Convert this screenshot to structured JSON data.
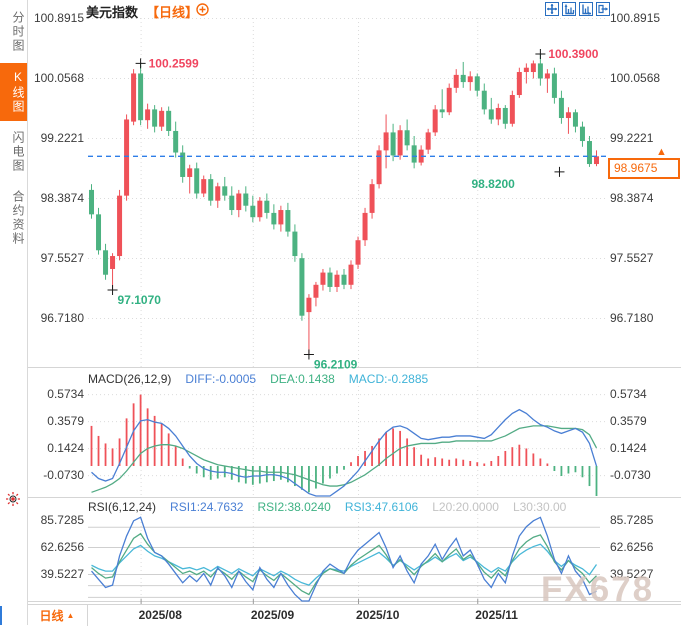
{
  "sidebar": {
    "items": [
      {
        "label": "分时图",
        "active": false
      },
      {
        "label": "K线图",
        "active": true
      },
      {
        "label": "闪电图",
        "active": false
      },
      {
        "label": "合约资料",
        "active": false
      }
    ]
  },
  "header": {
    "title": "美元指数",
    "period_tag": "【日线】"
  },
  "icons": {
    "add_indicator": "plus-circle",
    "toolbar": [
      "crosshair",
      "zoom-axis-vertical",
      "zoom-axis-horizontal",
      "exit-chart"
    ],
    "live_indicator": "blinking-red-dot",
    "price_arrow": "up-triangle"
  },
  "price_axis": {
    "labels": [
      "100.8915",
      "100.0568",
      "99.2221",
      "98.3874",
      "97.5527",
      "96.7180"
    ]
  },
  "last_price_box": {
    "value": "98.9675"
  },
  "macd_panel": {
    "title": "MACD(26,12,9)",
    "diff_label": "DIFF:-0.0005",
    "dea_label": "DEA:0.1438",
    "macd_label": "MACD:-0.2885",
    "axis_labels": [
      "0.5734",
      "0.3579",
      "0.1424",
      "-0.0730"
    ]
  },
  "rsi_panel": {
    "title": "RSI(6,12,24)",
    "rsi1_label": "RSI1:24.7632",
    "rsi2_label": "RSI2:38.0240",
    "rsi3_label": "RSI3:47.6106",
    "l20_label": "L20:20.0000",
    "l30_label": "L30:30.00",
    "axis_labels": [
      "85.7285",
      "62.6256",
      "39.5227"
    ]
  },
  "bottom_bar": {
    "period_label": "日线",
    "x_labels": [
      "2025/08",
      "2025/09",
      "2025/10",
      "2025/11"
    ]
  },
  "watermark": "FX678",
  "colors": {
    "accent_orange": "#f7690c",
    "candle_up_red": "#ef5158",
    "candle_down_green": "#4cb281",
    "diff_line_blue": "#4a7fd4",
    "dea_line_green": "#53ab85",
    "rsi3_line_cyan": "#49b8d8",
    "last_price_dashed_blue": "#2e7ee8",
    "annotation_red": "#f0455f",
    "annotation_green": "#31b182",
    "grid_grey": "#dcdcdc",
    "watermark_grey": "#d9c7bf"
  },
  "chart_data": {
    "type": "candlestick",
    "symbol": "美元指数",
    "period": "日线",
    "y_axis": [
      100.8915,
      100.0568,
      99.2221,
      98.3874,
      97.5527,
      96.718
    ],
    "last_price": 98.9675,
    "x_ticks": [
      {
        "label": "2025/08",
        "index": 7
      },
      {
        "label": "2025/09",
        "index": 23
      },
      {
        "label": "2025/10",
        "index": 38
      },
      {
        "label": "2025/11",
        "index": 55
      }
    ],
    "candles": [
      [
        98.5,
        98.58,
        98.1,
        98.16
      ],
      [
        98.16,
        98.25,
        97.6,
        97.66
      ],
      [
        97.66,
        97.75,
        97.25,
        97.32
      ],
      [
        97.4,
        97.62,
        97.107,
        97.58
      ],
      [
        97.58,
        98.5,
        97.52,
        98.42
      ],
      [
        98.42,
        99.55,
        98.35,
        99.48
      ],
      [
        99.45,
        100.18,
        99.4,
        100.12
      ],
      [
        100.12,
        100.2599,
        99.4,
        99.47
      ],
      [
        99.47,
        99.7,
        99.35,
        99.62
      ],
      [
        99.62,
        99.68,
        99.3,
        99.38
      ],
      [
        99.38,
        99.65,
        99.32,
        99.6
      ],
      [
        99.6,
        99.66,
        99.25,
        99.32
      ],
      [
        99.32,
        99.45,
        98.95,
        99.02
      ],
      [
        99.02,
        99.12,
        98.6,
        98.68
      ],
      [
        98.68,
        98.85,
        98.45,
        98.8
      ],
      [
        98.8,
        98.88,
        98.38,
        98.45
      ],
      [
        98.45,
        98.7,
        98.4,
        98.65
      ],
      [
        98.65,
        98.72,
        98.28,
        98.35
      ],
      [
        98.35,
        98.6,
        98.25,
        98.55
      ],
      [
        98.55,
        98.68,
        98.35,
        98.42
      ],
      [
        98.42,
        98.55,
        98.15,
        98.22
      ],
      [
        98.22,
        98.5,
        98.12,
        98.45
      ],
      [
        98.45,
        98.55,
        98.2,
        98.28
      ],
      [
        98.28,
        98.42,
        98.05,
        98.12
      ],
      [
        98.12,
        98.4,
        98.06,
        98.35
      ],
      [
        98.35,
        98.45,
        98.1,
        98.18
      ],
      [
        98.18,
        98.3,
        97.95,
        98.02
      ],
      [
        98.02,
        98.28,
        97.92,
        98.22
      ],
      [
        98.22,
        98.32,
        97.85,
        97.92
      ],
      [
        97.92,
        98.02,
        97.5,
        97.58
      ],
      [
        97.55,
        97.62,
        96.68,
        96.75
      ],
      [
        96.8,
        97.05,
        96.2109,
        97.0
      ],
      [
        97.0,
        97.22,
        96.88,
        97.18
      ],
      [
        97.18,
        97.4,
        97.1,
        97.35
      ],
      [
        97.35,
        97.42,
        97.08,
        97.15
      ],
      [
        97.15,
        97.38,
        97.08,
        97.32
      ],
      [
        97.32,
        97.4,
        97.12,
        97.18
      ],
      [
        97.18,
        97.52,
        97.12,
        97.46
      ],
      [
        97.46,
        97.85,
        97.4,
        97.8
      ],
      [
        97.8,
        98.25,
        97.72,
        98.18
      ],
      [
        98.18,
        98.65,
        98.1,
        98.58
      ],
      [
        98.58,
        99.12,
        98.52,
        99.05
      ],
      [
        99.05,
        99.55,
        98.8,
        99.3
      ],
      [
        99.3,
        99.42,
        98.9,
        98.98
      ],
      [
        98.98,
        99.4,
        98.92,
        99.33
      ],
      [
        99.33,
        99.48,
        99.05,
        99.12
      ],
      [
        99.12,
        99.25,
        98.8,
        98.88
      ],
      [
        98.88,
        99.12,
        98.84,
        99.06
      ],
      [
        99.06,
        99.35,
        99.0,
        99.3
      ],
      [
        99.3,
        99.68,
        99.25,
        99.62
      ],
      [
        99.62,
        99.9,
        99.5,
        99.58
      ],
      [
        99.58,
        99.98,
        99.54,
        99.92
      ],
      [
        99.92,
        100.18,
        99.85,
        100.1
      ],
      [
        100.1,
        100.28,
        99.92,
        100.0
      ],
      [
        100.0,
        100.15,
        99.88,
        100.08
      ],
      [
        100.08,
        100.12,
        99.8,
        99.88
      ],
      [
        99.88,
        99.98,
        99.55,
        99.62
      ],
      [
        99.62,
        99.78,
        99.42,
        99.48
      ],
      [
        99.48,
        99.7,
        99.4,
        99.64
      ],
      [
        99.64,
        99.68,
        99.35,
        99.42
      ],
      [
        99.42,
        99.88,
        99.38,
        99.82
      ],
      [
        99.82,
        100.2,
        99.78,
        100.14
      ],
      [
        100.14,
        100.26,
        99.98,
        100.2
      ],
      [
        100.14,
        100.3,
        100.05,
        100.26
      ],
      [
        100.26,
        100.39,
        99.95,
        100.05
      ],
      [
        100.05,
        100.18,
        99.85,
        100.12
      ],
      [
        100.12,
        100.2,
        99.7,
        99.78
      ],
      [
        99.78,
        99.88,
        99.42,
        99.5
      ],
      [
        99.5,
        99.65,
        99.28,
        99.58
      ],
      [
        99.58,
        99.62,
        99.3,
        99.38
      ],
      [
        99.38,
        99.45,
        99.1,
        99.18
      ],
      [
        99.18,
        99.25,
        98.82,
        98.86
      ],
      [
        98.86,
        99.05,
        98.83,
        98.9675
      ]
    ],
    "annotations": [
      {
        "text": "100.2599",
        "price": 100.2599,
        "index": 7,
        "type": "high",
        "color": "red",
        "placement": "right",
        "dx": 0,
        "dy": 0
      },
      {
        "text": "100.3900",
        "price": 100.39,
        "index": 64,
        "type": "high",
        "color": "red",
        "placement": "right",
        "dx": 0,
        "dy": 0
      },
      {
        "text": "97.1070",
        "price": 97.107,
        "index": 3,
        "type": "low",
        "color": "green",
        "placement": "below-right",
        "dx": 0,
        "dy": 0
      },
      {
        "text": "96.2109",
        "price": 96.2109,
        "index": 31,
        "type": "low",
        "color": "green",
        "placement": "below-right",
        "dx": 0,
        "dy": 0
      },
      {
        "text": "98.8200",
        "price": 98.82,
        "index": 71,
        "type": "low",
        "color": "green",
        "placement": "below-left",
        "dx": -30,
        "dy": 5
      }
    ],
    "macd": {
      "params": "26,12,9",
      "diff_last": -0.0005,
      "dea_last": 0.1438,
      "macd_last": -0.2885,
      "y_axis": [
        0.5734,
        0.3579,
        0.1424,
        -0.073
      ],
      "histogram": [
        0.32,
        0.24,
        0.18,
        0.14,
        0.22,
        0.38,
        0.5,
        0.57,
        0.46,
        0.4,
        0.34,
        0.26,
        0.16,
        0.06,
        -0.02,
        -0.06,
        -0.09,
        -0.11,
        -0.1,
        -0.09,
        -0.11,
        -0.13,
        -0.14,
        -0.15,
        -0.14,
        -0.13,
        -0.12,
        -0.11,
        -0.13,
        -0.16,
        -0.19,
        -0.21,
        -0.18,
        -0.14,
        -0.1,
        -0.06,
        -0.03,
        0.03,
        0.08,
        0.12,
        0.16,
        0.22,
        0.27,
        0.3,
        0.28,
        0.22,
        0.15,
        0.09,
        0.06,
        0.07,
        0.06,
        0.05,
        0.06,
        0.05,
        0.04,
        0.03,
        0.02,
        0.04,
        0.08,
        0.12,
        0.15,
        0.17,
        0.14,
        0.1,
        0.06,
        0.02,
        -0.04,
        -0.08,
        -0.06,
        -0.05,
        -0.09,
        -0.16,
        -0.29
      ],
      "diff": [
        -0.05,
        -0.1,
        -0.12,
        -0.1,
        0.02,
        0.15,
        0.28,
        0.36,
        0.37,
        0.35,
        0.34,
        0.3,
        0.24,
        0.16,
        0.08,
        0.02,
        -0.02,
        -0.04,
        -0.05,
        -0.05,
        -0.06,
        -0.08,
        -0.09,
        -0.08,
        -0.08,
        -0.07,
        -0.07,
        -0.08,
        -0.1,
        -0.14,
        -0.18,
        -0.22,
        -0.26,
        -0.27,
        -0.24,
        -0.2,
        -0.16,
        -0.1,
        -0.04,
        0.04,
        0.12,
        0.2,
        0.27,
        0.31,
        0.32,
        0.3,
        0.26,
        0.22,
        0.21,
        0.22,
        0.23,
        0.23,
        0.24,
        0.24,
        0.24,
        0.23,
        0.22,
        0.25,
        0.31,
        0.37,
        0.42,
        0.45,
        0.42,
        0.37,
        0.33,
        0.31,
        0.28,
        0.26,
        0.28,
        0.3,
        0.27,
        0.18,
        -0.0005
      ],
      "dea": [
        -0.21,
        -0.19,
        -0.17,
        -0.14,
        -0.1,
        -0.04,
        0.03,
        0.1,
        0.14,
        0.16,
        0.17,
        0.17,
        0.16,
        0.14,
        0.11,
        0.08,
        0.05,
        0.03,
        0.01,
        0.0,
        -0.01,
        -0.02,
        -0.03,
        -0.04,
        -0.04,
        -0.05,
        -0.05,
        -0.05,
        -0.06,
        -0.07,
        -0.09,
        -0.11,
        -0.13,
        -0.15,
        -0.16,
        -0.16,
        -0.15,
        -0.13,
        -0.1,
        -0.07,
        -0.03,
        0.01,
        0.06,
        0.1,
        0.14,
        0.16,
        0.17,
        0.18,
        0.18,
        0.18,
        0.19,
        0.19,
        0.2,
        0.2,
        0.2,
        0.2,
        0.2,
        0.2,
        0.22,
        0.24,
        0.27,
        0.3,
        0.31,
        0.32,
        0.32,
        0.32,
        0.31,
        0.3,
        0.3,
        0.3,
        0.29,
        0.25,
        0.1438
      ]
    },
    "rsi": {
      "params": "6,12,24",
      "rsi1_last": 24.7632,
      "rsi2_last": 38.024,
      "rsi3_last": 47.6106,
      "l20": 20.0,
      "l30": 30.0,
      "y_axis": [
        85.7285,
        62.6256,
        39.5227
      ],
      "grid_values": [
        80,
        62.6256,
        39.5227,
        30,
        20
      ],
      "rsi1": [
        42,
        35,
        28,
        30,
        55,
        72,
        85,
        88,
        70,
        58,
        55,
        48,
        40,
        32,
        38,
        33,
        40,
        30,
        45,
        38,
        28,
        42,
        33,
        26,
        45,
        35,
        28,
        40,
        30,
        22,
        15,
        12,
        30,
        42,
        48,
        44,
        40,
        52,
        60,
        65,
        70,
        75,
        62,
        45,
        55,
        42,
        32,
        48,
        55,
        65,
        52,
        62,
        70,
        55,
        60,
        48,
        35,
        28,
        40,
        32,
        55,
        72,
        80,
        85,
        88,
        72,
        52,
        40,
        55,
        42,
        35,
        22,
        24.7632
      ],
      "rsi2": [
        45,
        40,
        36,
        37,
        50,
        60,
        70,
        74,
        65,
        58,
        55,
        50,
        45,
        40,
        42,
        39,
        42,
        37,
        44,
        40,
        35,
        42,
        37,
        33,
        43,
        38,
        34,
        40,
        35,
        30,
        25,
        22,
        32,
        40,
        44,
        42,
        40,
        47,
        52,
        56,
        60,
        64,
        56,
        46,
        52,
        45,
        39,
        46,
        51,
        57,
        50,
        56,
        61,
        52,
        56,
        49,
        41,
        36,
        43,
        38,
        51,
        61,
        67,
        71,
        73,
        63,
        50,
        43,
        51,
        45,
        40,
        32,
        38.024
      ],
      "rsi3": [
        47,
        44,
        42,
        42,
        49,
        55,
        61,
        64,
        59,
        55,
        53,
        50,
        47,
        44,
        45,
        43,
        45,
        42,
        46,
        43,
        40,
        44,
        41,
        38,
        44,
        41,
        38,
        42,
        39,
        35,
        32,
        30,
        36,
        41,
        44,
        43,
        42,
        46,
        49,
        52,
        55,
        58,
        53,
        47,
        51,
        47,
        43,
        47,
        50,
        54,
        50,
        54,
        57,
        51,
        54,
        50,
        45,
        41,
        45,
        42,
        50,
        56,
        60,
        63,
        65,
        59,
        51,
        46,
        51,
        47,
        44,
        39,
        47.6106
      ]
    }
  }
}
